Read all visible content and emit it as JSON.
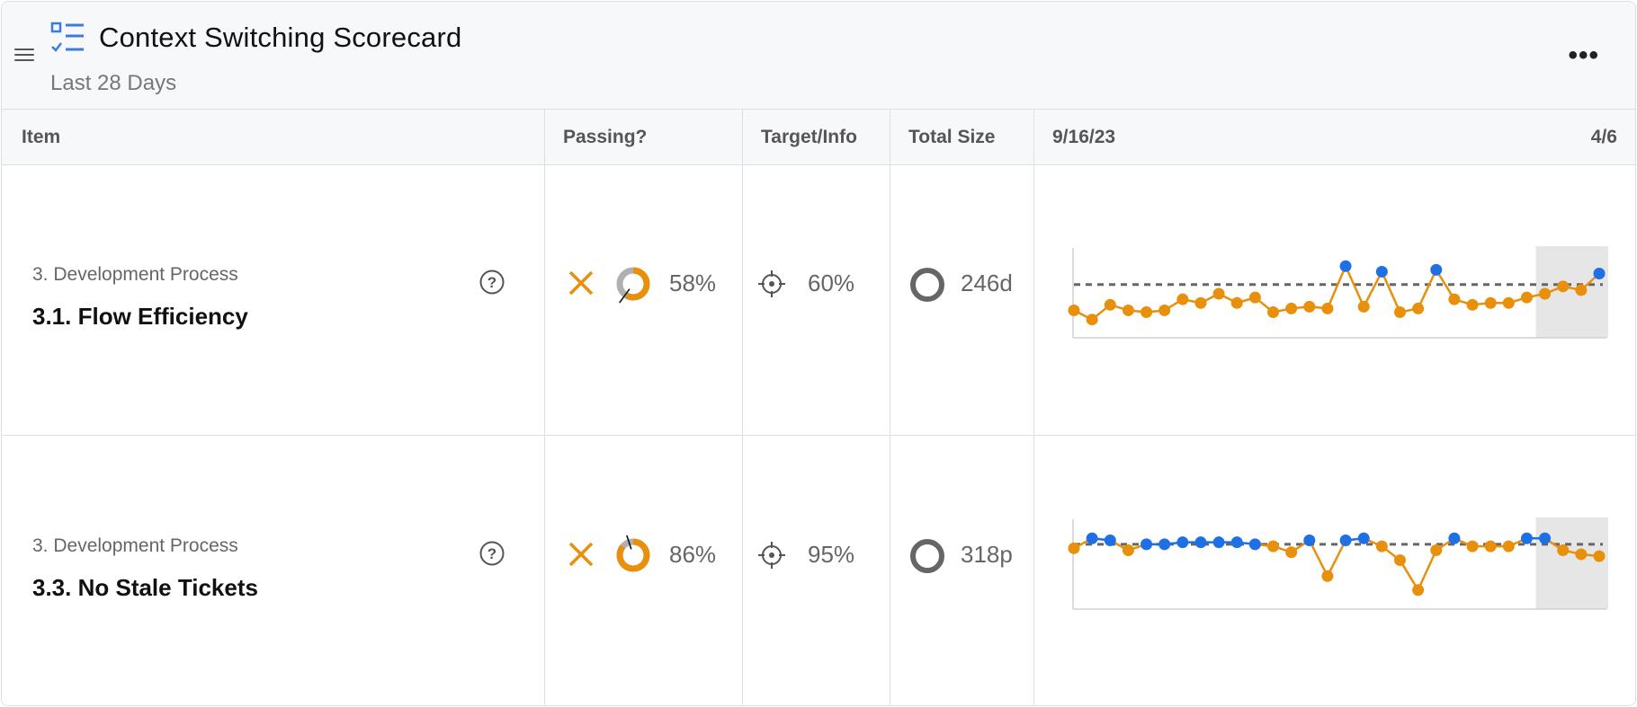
{
  "header": {
    "title": "Context Switching Scorecard",
    "subtitle": "Last 28 Days",
    "more_label": "•••"
  },
  "columns": {
    "item": "Item",
    "passing": "Passing?",
    "target": "Target/Info",
    "size": "Total Size",
    "date_start": "9/16/23",
    "date_end": "4/6"
  },
  "colors": {
    "fail": "#e8900c",
    "pass_point": "#1f6fe5",
    "below_point": "#e8900c",
    "donut_track": "#b0b0b0",
    "accent": "#3b7be0"
  },
  "rows": [
    {
      "category": "3. Development Process",
      "name": "3.1. Flow Efficiency",
      "passing": false,
      "percent": "58%",
      "percent_value": 58,
      "target": "60%",
      "target_value": 60,
      "size": "246d",
      "series": [
        46,
        41,
        49,
        46,
        45,
        46,
        52,
        50,
        55,
        50,
        53,
        45,
        47,
        48,
        47,
        70,
        48,
        67,
        45,
        47,
        68,
        52,
        49,
        50,
        50,
        53,
        55,
        59,
        57,
        66
      ]
    },
    {
      "category": "3. Development Process",
      "name": "3.3. No Stale Tickets",
      "passing": false,
      "percent": "86%",
      "percent_value": 86,
      "target": "95%",
      "target_value": 95,
      "size": "318p",
      "series": [
        93,
        98,
        97,
        92,
        95,
        95,
        96,
        96,
        96,
        96,
        95,
        94,
        91,
        97,
        79,
        97,
        98,
        94,
        87,
        72,
        92,
        98,
        94,
        94,
        94,
        98,
        98,
        92,
        90,
        89
      ]
    }
  ]
}
